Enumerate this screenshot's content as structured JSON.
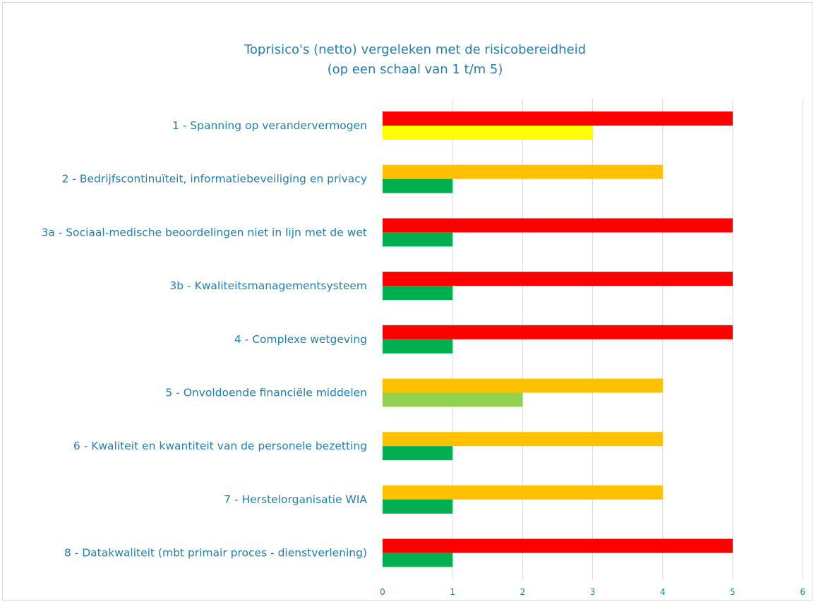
{
  "chart_data": {
    "type": "bar",
    "orientation": "horizontal",
    "title": "Toprisico's (netto) vergeleken met de risicobereidheid",
    "subtitle": "(op een schaal van 1 t/m 5)",
    "categories": [
      "1 - Spanning op verandervermogen",
      "2 - Bedrijfscontinuïteit, informatiebeveiliging en privacy",
      "3a - Sociaal-medische beoordelingen niet in lijn met de wet",
      "3b - Kwaliteitsmanagementsysteem",
      "4 - Complexe wetgeving",
      "5 - Onvoldoende financiële middelen",
      "6 - Kwaliteit en kwantiteit van de personele bezetting",
      "7 - Herstelorganisatie WIA",
      "8 - Datakwaliteit (mbt primair proces - dienstverlening)"
    ],
    "series": [
      {
        "values": [
          5,
          4,
          5,
          5,
          5,
          4,
          4,
          4,
          5
        ],
        "colors": [
          "#ff0000",
          "#ffc000",
          "#ff0000",
          "#ff0000",
          "#ff0000",
          "#ffc000",
          "#ffc000",
          "#ffc000",
          "#ff0000"
        ]
      },
      {
        "values": [
          3,
          1,
          1,
          1,
          1,
          2,
          1,
          1,
          1
        ],
        "colors": [
          "#ffff00",
          "#00b050",
          "#00b050",
          "#00b050",
          "#00b050",
          "#92d050",
          "#00b050",
          "#00b050",
          "#00b050"
        ]
      }
    ],
    "xlim": [
      0,
      6
    ],
    "xticks": [
      "0",
      "1",
      "2",
      "3",
      "4",
      "5",
      "6"
    ],
    "grid": true,
    "legend": "none",
    "text_color": "#1f7fb6",
    "grid_color": "#d9d9d9"
  }
}
